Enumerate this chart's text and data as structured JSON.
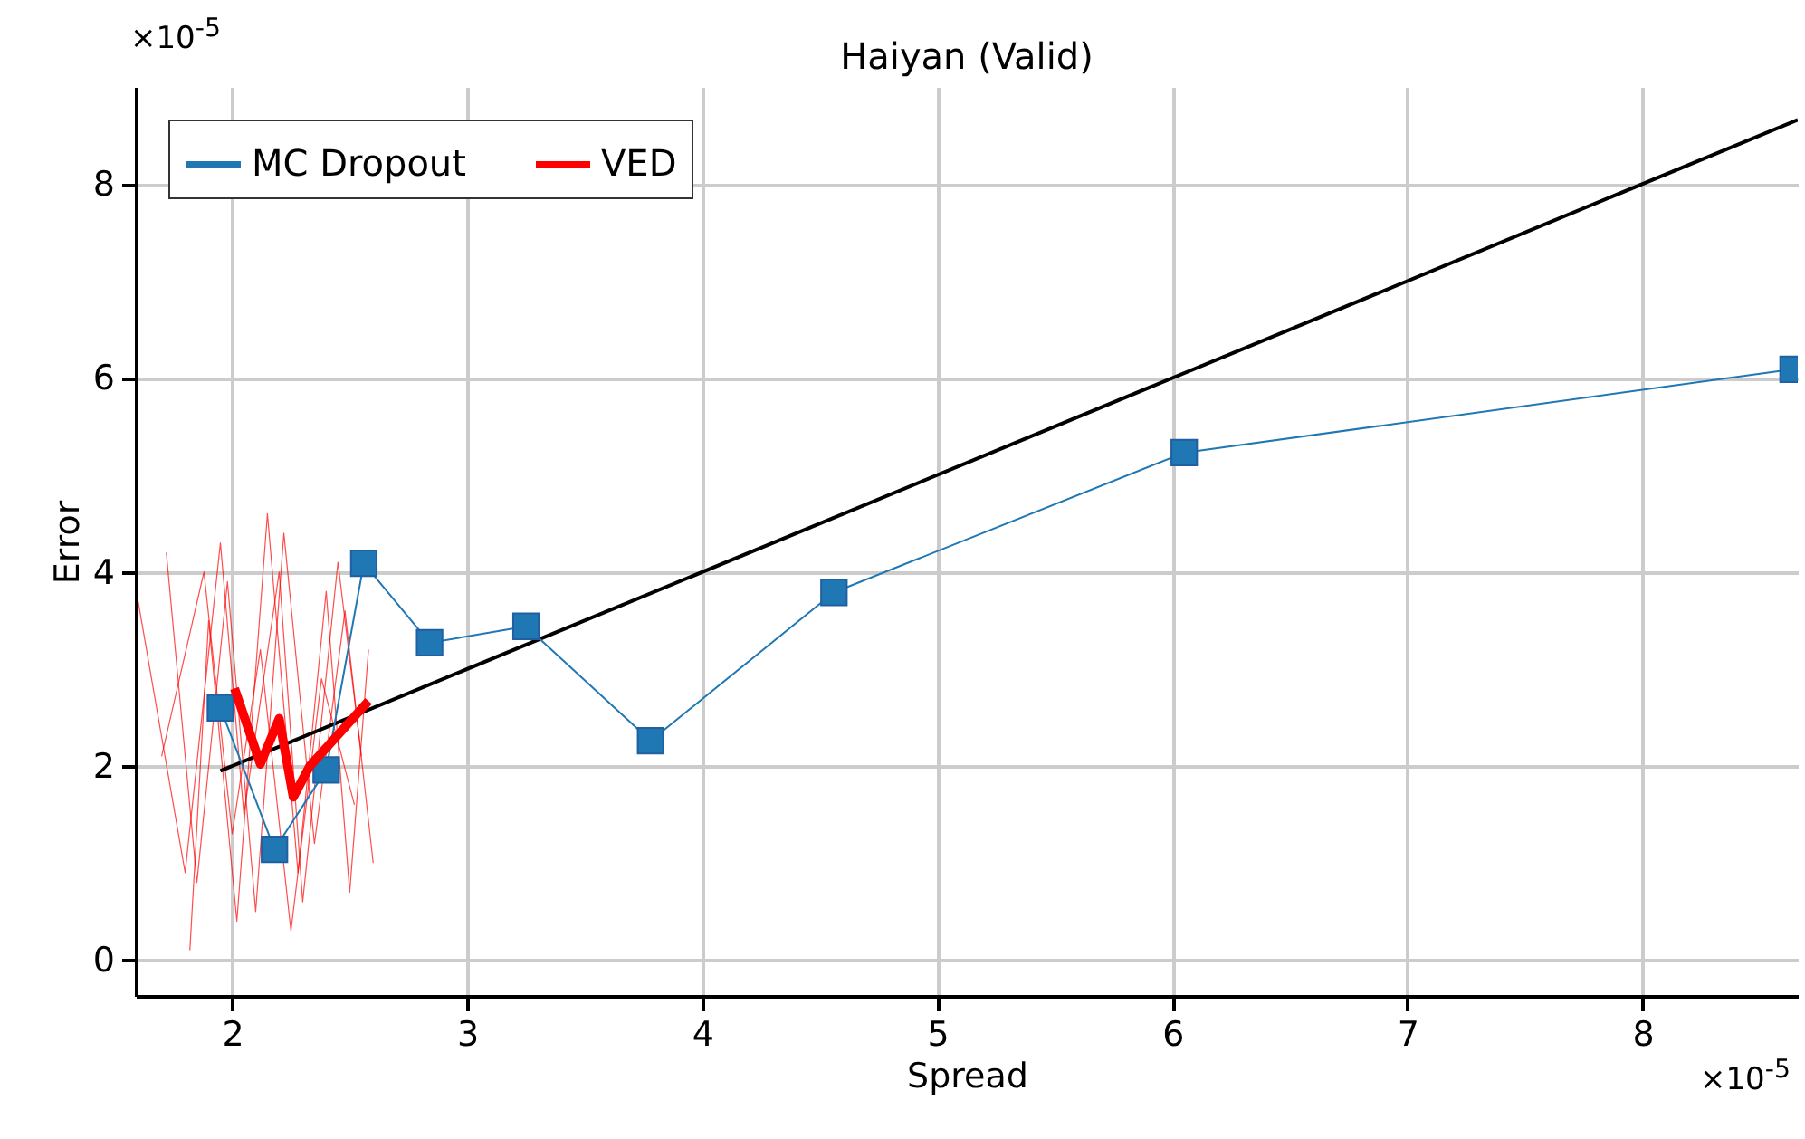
{
  "chart_data": {
    "type": "line",
    "title": "Haiyan (Valid)",
    "xlabel": "Spread",
    "ylabel": "Error",
    "xlim": [
      1.59,
      8.66
    ],
    "ylim": [
      -0.37,
      9.0
    ],
    "xticks": [
      2,
      3,
      4,
      5,
      6,
      7,
      8
    ],
    "yticks": [
      0,
      2,
      4,
      6,
      8
    ],
    "grid": true,
    "legend": "top left",
    "annotations": [
      "×10$^{-5}$",
      "×10$^{-5}$"
    ],
    "series": [
      {
        "color": "#ff0000",
        "line_style": "solid",
        "marker": "none",
        "x": [
          1.72,
          1.85,
          1.98,
          2.1,
          2.22,
          2.35,
          2.48,
          2.6
        ],
        "values": [
          4.2,
          0.8,
          3.9,
          0.5,
          4.4,
          1.2,
          3.6,
          1.0
        ]
      },
      {
        "color": "#ff0000",
        "line_style": "solid",
        "marker": "none",
        "x": [
          1.6,
          1.8,
          1.95,
          2.05,
          2.2,
          2.3,
          2.45,
          2.55
        ],
        "values": [
          3.7,
          0.9,
          4.3,
          1.5,
          4.0,
          0.6,
          4.1,
          2.1
        ]
      },
      {
        "color": "#ff0000",
        "line_style": "solid",
        "marker": "none",
        "x": [
          1.82,
          1.9,
          2.02,
          2.15,
          2.28,
          2.4,
          2.5,
          2.58
        ],
        "values": [
          0.1,
          3.5,
          0.4,
          4.6,
          0.9,
          3.8,
          0.7,
          3.2
        ]
      },
      {
        "color": "#ff0000",
        "line_style": "solid",
        "marker": "none",
        "x": [
          1.7,
          1.88,
          2.0,
          2.12,
          2.25,
          2.38,
          2.52
        ],
        "values": [
          2.1,
          4.0,
          1.3,
          3.2,
          0.3,
          2.9,
          1.6
        ]
      },
      {
        "color": "#000000",
        "line_style": "solid",
        "marker": "none",
        "x": [
          1.95,
          8.66
        ],
        "values": [
          1.95,
          8.66
        ]
      },
      {
        "name": "MC Dropout",
        "color": "#1f77b4",
        "line_style": "solid",
        "marker": "square",
        "x": [
          1.95,
          2.18,
          2.4,
          2.56,
          2.84,
          3.25,
          3.78,
          4.56,
          6.05,
          8.64
        ],
        "values": [
          2.6,
          1.14,
          1.96,
          4.09,
          3.27,
          3.44,
          2.26,
          3.79,
          5.23,
          6.09
        ]
      },
      {
        "name": "VED",
        "color": "#ff0000",
        "line_style": "solid",
        "marker": "none",
        "x": [
          2.01,
          2.12,
          2.2,
          2.26,
          2.33,
          2.58
        ],
        "values": [
          2.8,
          2.02,
          2.49,
          1.68,
          2.0,
          2.67
        ]
      }
    ]
  }
}
